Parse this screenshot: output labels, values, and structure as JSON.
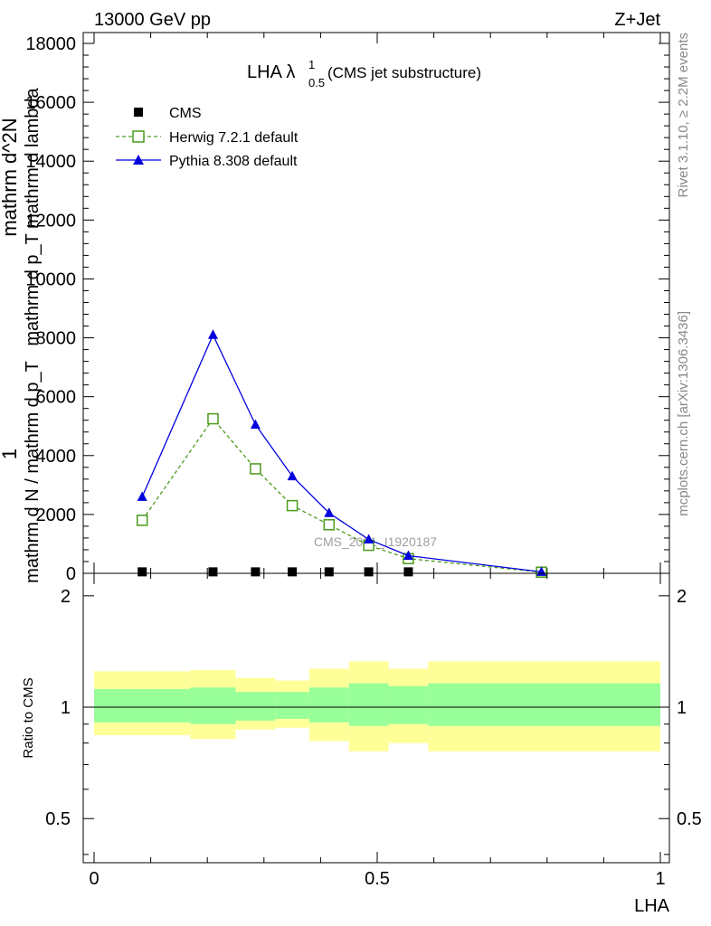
{
  "header": {
    "left": "13000 GeV pp",
    "right": "Z+Jet"
  },
  "side_labels": {
    "rivet": "Rivet 3.1.10, ≥ 2.2M events",
    "mcplots": "mcplots.cern.ch [arXiv:1306.3436]"
  },
  "chart_data": [
    {
      "type": "line",
      "title_main": "LHA λ",
      "title_sup": "1",
      "title_sub": "0.5",
      "title_rest": " (CMS jet substructure)",
      "ylabel_lines": [
        "1",
        "mathrm d N / mathrm d p_T",
        "mathrm d^2N",
        "mathrm d p_T mathrm d lambda"
      ],
      "xlabel": "",
      "watermark": "CMS_2021_I1920187",
      "ylim": [
        0,
        18000
      ],
      "yticks": [
        0,
        2000,
        4000,
        6000,
        8000,
        10000,
        12000,
        14000,
        16000,
        18000
      ],
      "ytick_labels": [
        "0",
        "2000",
        "4000",
        "6000",
        "8000",
        "10000",
        "12000",
        "14000",
        "16000",
        "18000"
      ],
      "xlim": [
        0,
        1
      ],
      "legend_position": "top-left",
      "series": [
        {
          "name": "CMS",
          "color": "#000000",
          "marker": "square",
          "x": [
            0.085,
            0.21,
            0.285,
            0.35,
            0.415,
            0.485,
            0.555,
            0.79
          ],
          "y": [
            50,
            50,
            50,
            50,
            50,
            50,
            50,
            20
          ]
        },
        {
          "name": "Herwig 7.2.1 default",
          "color": "#4a9a1a",
          "marker": "open-square",
          "dashed": true,
          "x": [
            0.085,
            0.21,
            0.285,
            0.35,
            0.415,
            0.485,
            0.555,
            0.79
          ],
          "y": [
            1800,
            5250,
            3550,
            2300,
            1650,
            950,
            500,
            40
          ]
        },
        {
          "name": "Pythia 8.308 default",
          "color": "#0000dd",
          "marker": "triangle",
          "dashed": false,
          "x": [
            0.085,
            0.21,
            0.285,
            0.35,
            0.415,
            0.485,
            0.555,
            0.79
          ],
          "y": [
            2600,
            8100,
            5050,
            3300,
            2050,
            1150,
            600,
            50
          ]
        }
      ]
    },
    {
      "type": "area",
      "ylabel": "Ratio to CMS",
      "xlabel": "LHA",
      "xlim": [
        0,
        1
      ],
      "xticks": [
        0,
        0.5,
        1
      ],
      "xtick_labels": [
        "0",
        "0.5",
        "1"
      ],
      "yticks": [
        0.5,
        1,
        2
      ],
      "ytick_labels": [
        "0.5",
        "1",
        "2"
      ],
      "ylim": [
        0.38,
        2.3
      ],
      "reference": 1,
      "band_colors": {
        "inner": "#99ff99",
        "outer": "#ffff99"
      },
      "bins": [
        {
          "lo": 0.0,
          "hi": 0.17,
          "inner": [
            0.91,
            1.12
          ],
          "outer": [
            0.84,
            1.25
          ]
        },
        {
          "lo": 0.17,
          "hi": 0.25,
          "inner": [
            0.9,
            1.13
          ],
          "outer": [
            0.82,
            1.26
          ]
        },
        {
          "lo": 0.25,
          "hi": 0.32,
          "inner": [
            0.92,
            1.1
          ],
          "outer": [
            0.87,
            1.2
          ]
        },
        {
          "lo": 0.32,
          "hi": 0.38,
          "inner": [
            0.93,
            1.1
          ],
          "outer": [
            0.88,
            1.18
          ]
        },
        {
          "lo": 0.38,
          "hi": 0.45,
          "inner": [
            0.91,
            1.13
          ],
          "outer": [
            0.81,
            1.27
          ]
        },
        {
          "lo": 0.45,
          "hi": 0.52,
          "inner": [
            0.89,
            1.16
          ],
          "outer": [
            0.76,
            1.33
          ]
        },
        {
          "lo": 0.52,
          "hi": 0.59,
          "inner": [
            0.9,
            1.14
          ],
          "outer": [
            0.8,
            1.27
          ]
        },
        {
          "lo": 0.59,
          "hi": 1.0,
          "inner": [
            0.89,
            1.16
          ],
          "outer": [
            0.76,
            1.33
          ]
        }
      ]
    }
  ]
}
